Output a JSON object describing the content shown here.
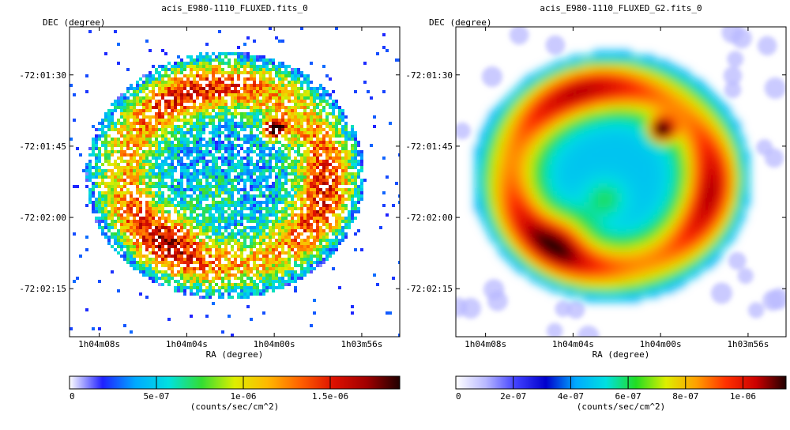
{
  "chart_data": [
    {
      "type": "heatmap",
      "title": "acis_E980-1110_FLUXED.fits_0",
      "xlabel": "RA (degree)",
      "ylabel": "DEC (degree)",
      "x_ticks": [
        "1h04m08s",
        "1h04m04s",
        "1h04m00s",
        "1h03m56s"
      ],
      "y_ticks": [
        "-72:01:30",
        "-72:01:45",
        "-72:02:00",
        "-72:02:15"
      ],
      "colorbar": {
        "range": [
          0,
          1.9e-06
        ],
        "ticks": [
          0,
          5e-07,
          1e-06,
          1.5e-06
        ],
        "tick_labels": [
          "0",
          "5e-07",
          "1e-06",
          "1.5e-06"
        ],
        "label": "(counts/sec/cm^2)",
        "colors": [
          "#ffffff",
          "#2020ff",
          "#00aaff",
          "#00e0e0",
          "#33dd33",
          "#ddee00",
          "#ffb800",
          "#ff6000",
          "#dd1000",
          "#a00000",
          "#200000"
        ]
      },
      "description_values": {
        "morphology": "pixelated clumpy ring (shell) with noisy background pixels",
        "hotspot_value": 1.9e-06
      }
    },
    {
      "type": "heatmap",
      "title": "acis_E980-1110_FLUXED_G2.fits_0",
      "xlabel": "RA (degree)",
      "ylabel": "DEC (degree)",
      "x_ticks": [
        "1h04m08s",
        "1h04m04s",
        "1h04m00s",
        "1h03m56s"
      ],
      "y_ticks": [
        "-72:01:30",
        "-72:01:45",
        "-72:02:00",
        "-72:02:15"
      ],
      "colorbar": {
        "range": [
          0,
          1.15e-06
        ],
        "ticks": [
          0,
          2e-07,
          4e-07,
          6e-07,
          8e-07,
          1e-06
        ],
        "tick_labels": [
          "0",
          "2e-07",
          "4e-07",
          "6e-07",
          "8e-07",
          "1e-06"
        ],
        "label": "(counts/sec/cm^2)",
        "colors": [
          "#ffffff",
          "#b8b8ff",
          "#4040ff",
          "#0000cc",
          "#00aaff",
          "#00e0e0",
          "#22dd22",
          "#ddee00",
          "#ffa000",
          "#ff3000",
          "#cc0000",
          "#200000"
        ]
      },
      "description_values": {
        "morphology": "Gaussian-smoothed ring (shell) with diffuse blob background",
        "hotspot_value": 1.1e-06
      }
    }
  ]
}
